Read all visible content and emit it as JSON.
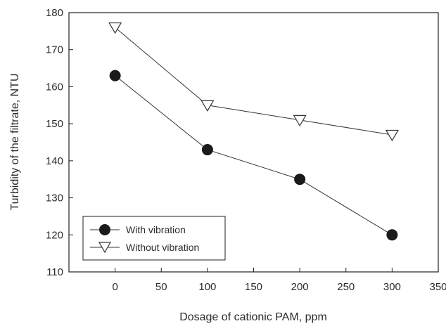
{
  "chart_data": {
    "type": "line",
    "title": "",
    "xlabel": "Dosage of cationic PAM, ppm",
    "ylabel": "Turbidity of the filtrate, NTU",
    "xlim": [
      -50,
      350
    ],
    "ylim": [
      110,
      180
    ],
    "xticks": [
      0,
      50,
      100,
      150,
      200,
      250,
      300,
      350
    ],
    "yticks": [
      110,
      120,
      130,
      140,
      150,
      160,
      170,
      180
    ],
    "grid": false,
    "legend_position": "bottom-left",
    "x": [
      0,
      100,
      200,
      300
    ],
    "series": [
      {
        "name": "With vibration",
        "marker": "filled-circle",
        "values": [
          163,
          143,
          135,
          120
        ]
      },
      {
        "name": "Without vibration",
        "marker": "open-down-triangle",
        "values": [
          176,
          155,
          151,
          147
        ]
      }
    ]
  }
}
